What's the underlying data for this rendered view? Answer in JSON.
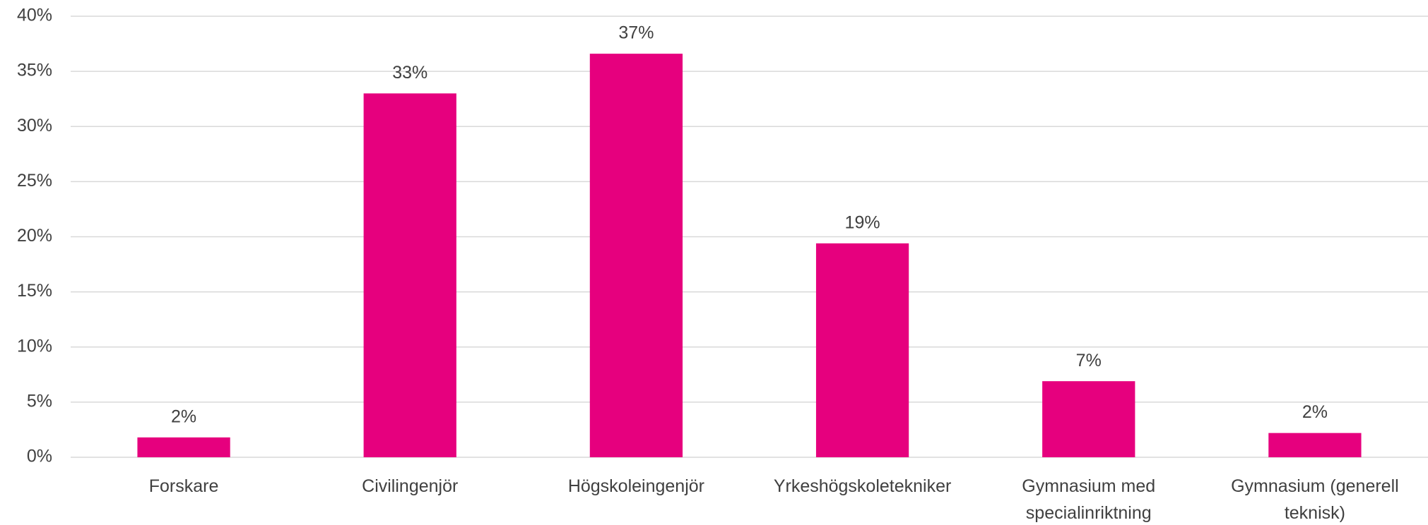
{
  "chart_data": {
    "type": "bar",
    "categories": [
      "Forskare",
      "Civilingenjör",
      "Högskoleingenjör",
      "Yrkeshögskoletekniker",
      "Gymnasium med specialinriktning",
      "Gymnasium (generell teknisk)"
    ],
    "values": [
      1.8,
      33,
      36.6,
      19.4,
      6.9,
      2.2
    ],
    "value_labels": [
      "2%",
      "33%",
      "37%",
      "19%",
      "7%",
      "2%"
    ],
    "color": "#e6007e",
    "ylim": [
      0,
      40
    ],
    "yticks": [
      {
        "value": 0,
        "label": "0%"
      },
      {
        "value": 5,
        "label": "5%"
      },
      {
        "value": 10,
        "label": "10%"
      },
      {
        "value": 15,
        "label": "15%"
      },
      {
        "value": 20,
        "label": "20%"
      },
      {
        "value": 25,
        "label": "25%"
      },
      {
        "value": 30,
        "label": "30%"
      },
      {
        "value": 35,
        "label": "35%"
      },
      {
        "value": 40,
        "label": "40%"
      }
    ],
    "grid": true
  }
}
